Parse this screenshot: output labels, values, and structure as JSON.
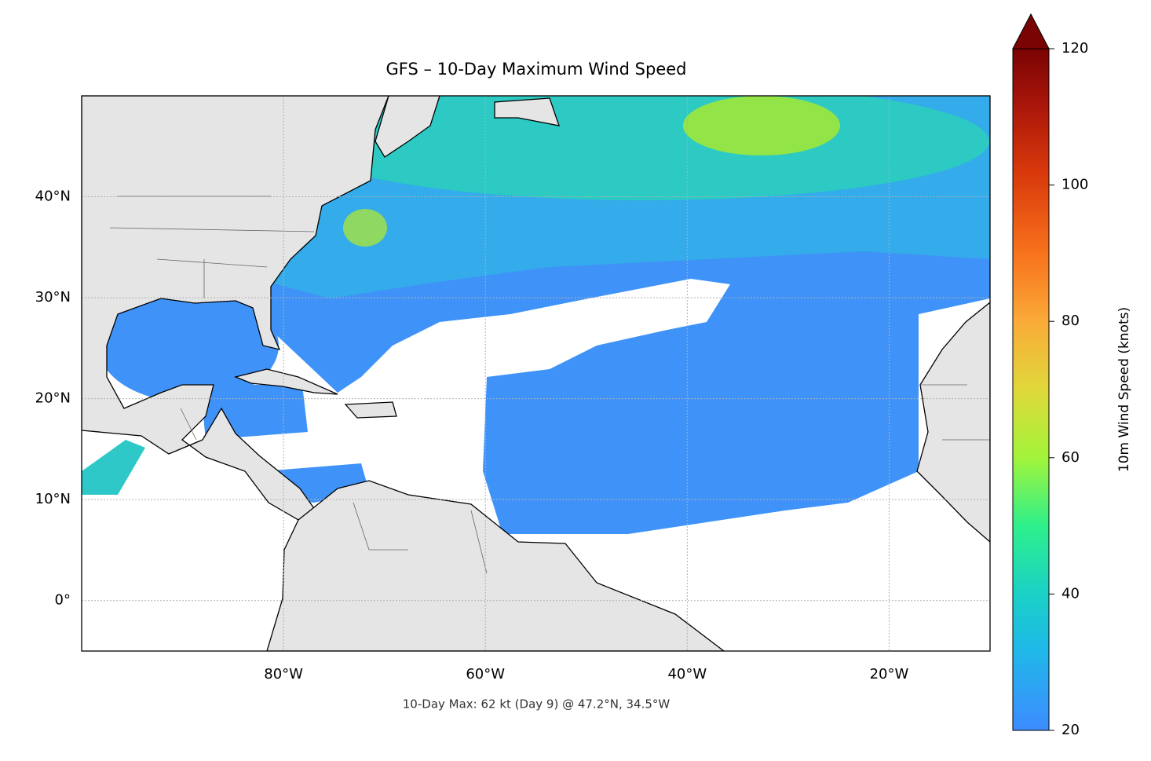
{
  "chart_data": {
    "type": "map",
    "title": "GFS – 10-Day Maximum Wind Speed",
    "annotation": "10-Day Max: 62 kt (Day 9) @ 47.2°N, 34.5°W",
    "xlim": [
      -100,
      -10
    ],
    "ylim": [
      -5,
      50
    ],
    "xticks": [
      {
        "value": -80,
        "label": "80°W"
      },
      {
        "value": -60,
        "label": "60°W"
      },
      {
        "value": -40,
        "label": "40°W"
      },
      {
        "value": -20,
        "label": "20°W"
      }
    ],
    "yticks": [
      {
        "value": 0,
        "label": "0°"
      },
      {
        "value": 10,
        "label": "10°N"
      },
      {
        "value": 20,
        "label": "20°N"
      },
      {
        "value": 30,
        "label": "30°N"
      },
      {
        "value": 40,
        "label": "40°N"
      }
    ],
    "grid": true,
    "colorbar": {
      "label": "10m Wind Speed (knots)",
      "lim": [
        20,
        120
      ],
      "ticks": [
        20,
        40,
        60,
        80,
        100,
        120
      ]
    }
  }
}
